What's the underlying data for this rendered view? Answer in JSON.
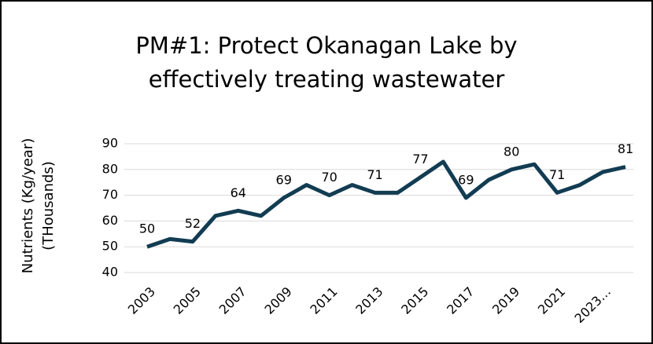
{
  "chart_data": {
    "type": "line",
    "title": [
      "PM#1: Protect Okanagan Lake by",
      "effectively treating wastewater"
    ],
    "y_label": [
      "Nutrients (Kg/year)",
      "(THousands)"
    ],
    "categories": [
      "2003",
      null,
      "2005",
      null,
      "2007",
      null,
      "2009",
      null,
      "2011",
      null,
      "2013",
      null,
      "2015",
      null,
      "2017",
      null,
      "2019",
      null,
      "2021",
      null,
      "2023…",
      null
    ],
    "values": [
      50,
      53,
      52,
      62,
      64,
      62,
      69,
      74,
      70,
      74,
      71,
      71,
      77,
      83,
      69,
      76,
      80,
      82,
      71,
      74,
      79,
      81
    ],
    "value_labels": [
      "50",
      null,
      "52",
      null,
      "64",
      null,
      "69",
      null,
      "70",
      null,
      "71",
      null,
      "77",
      null,
      "69",
      null,
      "80",
      null,
      "71",
      null,
      null,
      "81"
    ],
    "color": "#123c52",
    "ylim": [
      40,
      90
    ],
    "yticks": [
      40,
      50,
      60,
      70,
      80,
      90
    ],
    "grid": true
  }
}
